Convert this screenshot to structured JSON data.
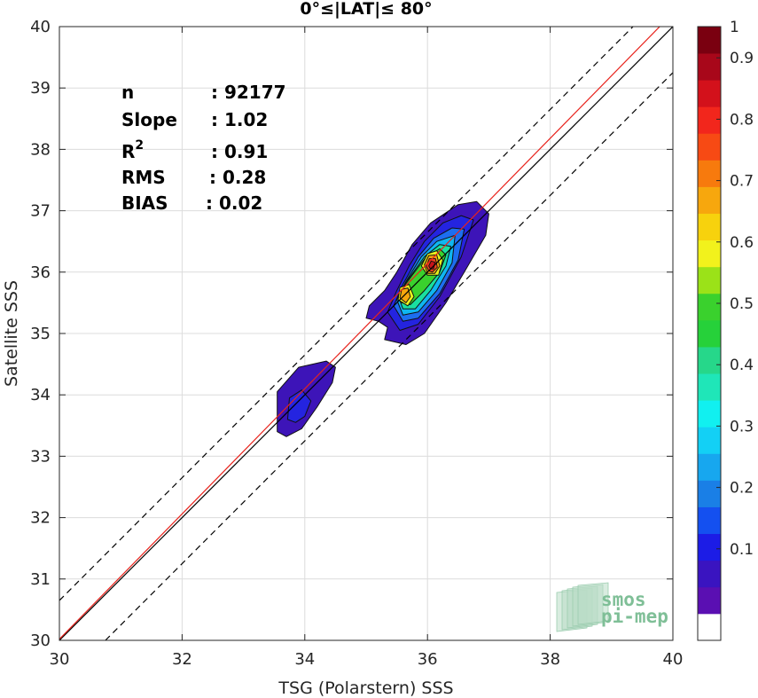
{
  "chart_data": {
    "type": "contour",
    "title": "0°≤|LAT|≤ 80°",
    "xlabel": "TSG (Polarstern) SSS",
    "ylabel": "Satellite SSS",
    "xlim": [
      30,
      40
    ],
    "ylim": [
      30,
      40
    ],
    "xticks": [
      "30",
      "32",
      "34",
      "36",
      "38",
      "40"
    ],
    "yticks": [
      "30",
      "31",
      "32",
      "33",
      "34",
      "35",
      "36",
      "37",
      "38",
      "39",
      "40"
    ],
    "grid": true,
    "stats": [
      {
        "key": "n",
        "value": ": 92177"
      },
      {
        "key": "Slope",
        "value": ": 1.02"
      },
      {
        "key": "R",
        "sup": "2",
        "value": ": 0.91"
      },
      {
        "key": "RMS",
        "value": ": 0.28"
      },
      {
        "key": "BIAS",
        "value": ": 0.02"
      }
    ],
    "reference_lines": [
      {
        "name": "identity",
        "color": "#000000",
        "style": "solid",
        "points": [
          [
            30,
            30
          ],
          [
            40,
            40
          ]
        ]
      },
      {
        "name": "regression",
        "color": "#e8231c",
        "style": "solid",
        "points": [
          [
            30,
            30.02
          ],
          [
            40,
            40.22
          ]
        ]
      },
      {
        "name": "upper-bound",
        "color": "#000000",
        "style": "dashed",
        "points": [
          [
            30,
            30.65
          ],
          [
            39.35,
            40
          ]
        ]
      },
      {
        "name": "lower-bound",
        "color": "#000000",
        "style": "dashed",
        "points": [
          [
            30.75,
            30
          ],
          [
            40,
            39.25
          ]
        ]
      }
    ],
    "contour_levels": [
      {
        "level": 0.05,
        "color": "#3d14b8",
        "regions": [
          [
            [
              35.0,
              35.25
            ],
            [
              35.05,
              35.45
            ],
            [
              35.3,
              35.7
            ],
            [
              35.5,
              36.0
            ],
            [
              35.75,
              36.45
            ],
            [
              36.05,
              36.8
            ],
            [
              36.5,
              37.1
            ],
            [
              36.8,
              37.15
            ],
            [
              37.0,
              36.95
            ],
            [
              36.95,
              36.6
            ],
            [
              36.6,
              36.0
            ],
            [
              36.3,
              35.5
            ],
            [
              35.95,
              35.0
            ],
            [
              35.65,
              34.82
            ],
            [
              35.3,
              34.9
            ],
            [
              35.35,
              35.1
            ],
            [
              35.2,
              35.2
            ]
          ],
          [
            [
              33.55,
              33.4
            ],
            [
              33.55,
              34.05
            ],
            [
              33.9,
              34.45
            ],
            [
              34.35,
              34.55
            ],
            [
              34.5,
              34.45
            ],
            [
              34.45,
              34.2
            ],
            [
              34.2,
              33.8
            ],
            [
              33.95,
              33.45
            ],
            [
              33.7,
              33.32
            ]
          ]
        ]
      },
      {
        "level": 0.15,
        "color": "#2424e0",
        "regions": [
          [
            [
              35.35,
              35.35
            ],
            [
              35.5,
              35.7
            ],
            [
              35.7,
              36.1
            ],
            [
              35.95,
              36.5
            ],
            [
              36.25,
              36.8
            ],
            [
              36.55,
              36.92
            ],
            [
              36.75,
              36.85
            ],
            [
              36.55,
              36.25
            ],
            [
              36.2,
              35.6
            ],
            [
              35.85,
              35.15
            ],
            [
              35.55,
              35.05
            ]
          ],
          [
            [
              33.72,
              33.6
            ],
            [
              33.75,
              33.95
            ],
            [
              33.95,
              34.08
            ],
            [
              34.1,
              33.9
            ],
            [
              34.0,
              33.65
            ],
            [
              33.85,
              33.55
            ]
          ]
        ]
      },
      {
        "level": 0.25,
        "color": "#1d6ef0",
        "regions": [
          [
            [
              35.45,
              35.45
            ],
            [
              35.6,
              35.8
            ],
            [
              35.85,
              36.25
            ],
            [
              36.1,
              36.55
            ],
            [
              36.4,
              36.72
            ],
            [
              36.6,
              36.7
            ],
            [
              36.5,
              36.2
            ],
            [
              36.2,
              35.65
            ],
            [
              35.85,
              35.25
            ],
            [
              35.6,
              35.2
            ]
          ]
        ]
      },
      {
        "level": 0.35,
        "color": "#0fb6f0",
        "regions": [
          [
            [
              35.5,
              35.55
            ],
            [
              35.65,
              35.85
            ],
            [
              35.9,
              36.25
            ],
            [
              36.15,
              36.5
            ],
            [
              36.45,
              36.6
            ],
            [
              36.4,
              36.15
            ],
            [
              36.15,
              35.7
            ],
            [
              35.85,
              35.35
            ],
            [
              35.6,
              35.3
            ]
          ]
        ]
      },
      {
        "level": 0.45,
        "color": "#19e0a0",
        "regions": [
          [
            [
              35.52,
              35.62
            ],
            [
              35.7,
              35.9
            ],
            [
              35.95,
              36.25
            ],
            [
              36.2,
              36.45
            ],
            [
              36.38,
              36.42
            ],
            [
              36.3,
              36.1
            ],
            [
              36.05,
              35.7
            ],
            [
              35.8,
              35.4
            ],
            [
              35.6,
              35.4
            ]
          ]
        ]
      },
      {
        "level": 0.55,
        "color": "#3ad12d",
        "regions": [
          [
            [
              35.55,
              35.68
            ],
            [
              35.75,
              35.95
            ],
            [
              35.98,
              36.25
            ],
            [
              36.2,
              36.38
            ],
            [
              36.3,
              36.28
            ],
            [
              36.2,
              36.0
            ],
            [
              35.95,
              35.7
            ],
            [
              35.72,
              35.47
            ],
            [
              35.58,
              35.5
            ]
          ]
        ]
      },
      {
        "level": 0.62,
        "color": "#e8f21c",
        "regions": [
          [
            [
              35.52,
              35.55
            ],
            [
              35.55,
              35.75
            ],
            [
              35.7,
              35.8
            ],
            [
              35.78,
              35.6
            ],
            [
              35.68,
              35.45
            ]
          ],
          [
            [
              35.9,
              36.1
            ],
            [
              36.0,
              36.3
            ],
            [
              36.15,
              36.35
            ],
            [
              36.25,
              36.2
            ],
            [
              36.18,
              35.95
            ],
            [
              36.0,
              35.95
            ]
          ]
        ]
      },
      {
        "level": 0.72,
        "color": "#f7a70d",
        "regions": [
          [
            [
              35.55,
              35.58
            ],
            [
              35.58,
              35.72
            ],
            [
              35.68,
              35.74
            ],
            [
              35.72,
              35.6
            ],
            [
              35.65,
              35.5
            ]
          ],
          [
            [
              35.95,
              36.12
            ],
            [
              36.02,
              36.27
            ],
            [
              36.15,
              36.28
            ],
            [
              36.2,
              36.1
            ],
            [
              36.12,
              35.98
            ],
            [
              36.0,
              35.98
            ]
          ]
        ]
      },
      {
        "level": 0.82,
        "color": "#f2411c",
        "regions": [
          [
            [
              35.98,
              36.1
            ],
            [
              36.03,
              36.22
            ],
            [
              36.13,
              36.22
            ],
            [
              36.16,
              36.08
            ],
            [
              36.08,
              36.0
            ],
            [
              36.02,
              36.02
            ]
          ]
        ]
      },
      {
        "level": 0.92,
        "color": "#c8131b",
        "regions": [
          [
            [
              36.02,
              36.1
            ],
            [
              36.06,
              36.18
            ],
            [
              36.12,
              36.16
            ],
            [
              36.1,
              36.05
            ],
            [
              36.05,
              36.05
            ]
          ]
        ]
      }
    ],
    "colorbar": {
      "colors": [
        "#ffffff",
        "#5a0fb2",
        "#3a14c0",
        "#1c1ce6",
        "#1450f0",
        "#1a7fe6",
        "#17a7ef",
        "#13d0f5",
        "#11f0f0",
        "#1fe6b8",
        "#26d78a",
        "#26d13a",
        "#3ad12d",
        "#9be218",
        "#f2f21c",
        "#f7d20d",
        "#f7a70d",
        "#f77a0d",
        "#f74a14",
        "#f2261c",
        "#d3111b",
        "#a8071a",
        "#7a0010"
      ],
      "ticks": [
        "0.1",
        "0.2",
        "0.3",
        "0.4",
        "0.5",
        "0.6",
        "0.7",
        "0.8",
        "0.9",
        "1"
      ],
      "range": [
        0,
        1
      ]
    },
    "logo": {
      "line1": "smos",
      "line2": "pi-mep"
    }
  }
}
